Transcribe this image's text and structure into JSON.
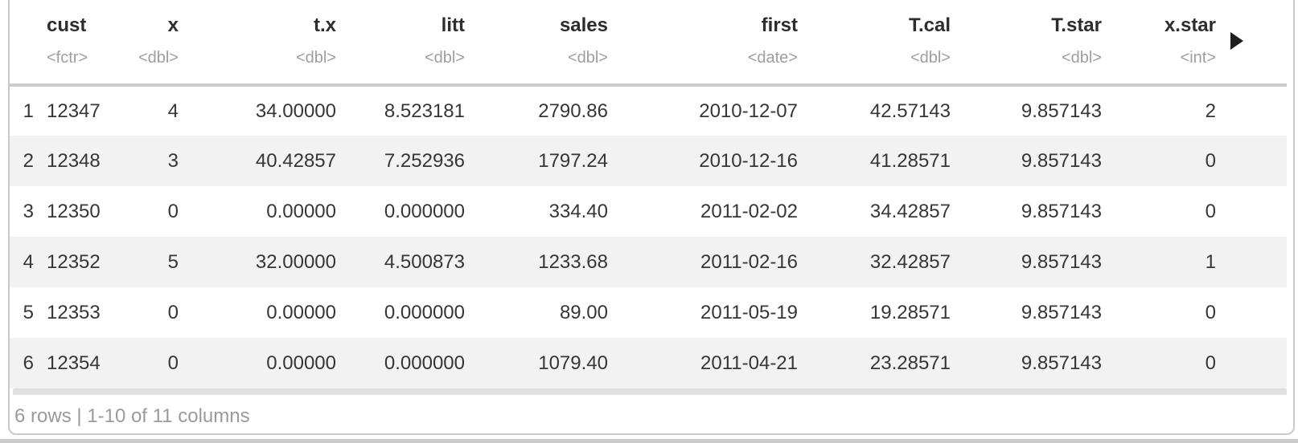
{
  "table": {
    "columns": [
      {
        "name": "",
        "type": "",
        "align": "right"
      },
      {
        "name": "cust",
        "type": "<fctr>",
        "align": "left"
      },
      {
        "name": "x",
        "type": "<dbl>",
        "align": "right"
      },
      {
        "name": "t.x",
        "type": "<dbl>",
        "align": "right"
      },
      {
        "name": "litt",
        "type": "<dbl>",
        "align": "right"
      },
      {
        "name": "sales",
        "type": "<dbl>",
        "align": "right"
      },
      {
        "name": "first",
        "type": "<date>",
        "align": "right"
      },
      {
        "name": "T.cal",
        "type": "<dbl>",
        "align": "right"
      },
      {
        "name": "T.star",
        "type": "<dbl>",
        "align": "right"
      },
      {
        "name": "x.star",
        "type": "<int>",
        "align": "right"
      }
    ],
    "rows": [
      [
        "1",
        "12347",
        "4",
        "34.00000",
        "8.523181",
        "2790.86",
        "2010-12-07",
        "42.57143",
        "9.857143",
        "2"
      ],
      [
        "2",
        "12348",
        "3",
        "40.42857",
        "7.252936",
        "1797.24",
        "2010-12-16",
        "41.28571",
        "9.857143",
        "0"
      ],
      [
        "3",
        "12350",
        "0",
        "0.00000",
        "0.000000",
        "334.40",
        "2011-02-02",
        "34.42857",
        "9.857143",
        "0"
      ],
      [
        "4",
        "12352",
        "5",
        "32.00000",
        "4.500873",
        "1233.68",
        "2011-02-16",
        "32.42857",
        "9.857143",
        "1"
      ],
      [
        "5",
        "12353",
        "0",
        "0.00000",
        "0.000000",
        "89.00",
        "2011-05-19",
        "19.28571",
        "9.857143",
        "0"
      ],
      [
        "6",
        "12354",
        "0",
        "0.00000",
        "0.000000",
        "1079.40",
        "2011-04-21",
        "23.28571",
        "9.857143",
        "0"
      ]
    ],
    "footer": "6 rows | 1-10 of 11 columns"
  },
  "colors": {
    "row_stripe": "#f2f2f2",
    "header_separator": "#cccccc",
    "card_border": "#c9c9c9",
    "scrollbar_track": "#e0e0e0",
    "header_text": "#2d2d2d",
    "cell_text": "#363636",
    "type_label_text": "#9e9e9e",
    "footer_text": "#9a9a9a"
  }
}
